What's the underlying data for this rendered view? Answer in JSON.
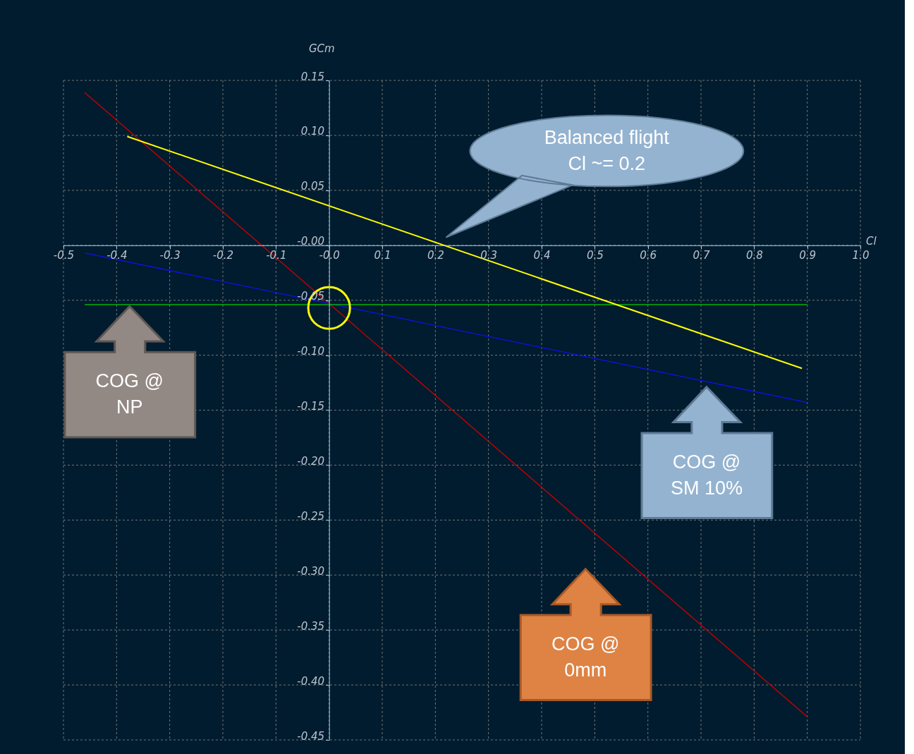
{
  "chart_data": {
    "type": "line",
    "xlabel": "Cl",
    "ylabel": "GCm",
    "xlim": [
      -0.5,
      1.0
    ],
    "ylim": [
      -0.45,
      0.15
    ],
    "xticks": [
      {
        "value": -0.5,
        "label": "-0.5"
      },
      {
        "value": -0.4,
        "label": "-0.4"
      },
      {
        "value": -0.3,
        "label": "-0.3"
      },
      {
        "value": -0.2,
        "label": "-0.2"
      },
      {
        "value": -0.1,
        "label": "-0.1"
      },
      {
        "value": 0,
        "label": "-0.0"
      },
      {
        "value": 0.1,
        "label": "0.1"
      },
      {
        "value": 0.2,
        "label": "0.2"
      },
      {
        "value": 0.3,
        "label": "0.3"
      },
      {
        "value": 0.4,
        "label": "0.4"
      },
      {
        "value": 0.5,
        "label": "0.5"
      },
      {
        "value": 0.6,
        "label": "0.6"
      },
      {
        "value": 0.7,
        "label": "0.7"
      },
      {
        "value": 0.8,
        "label": "0.8"
      },
      {
        "value": 0.9,
        "label": "0.9"
      },
      {
        "value": 1.0,
        "label": "1.0"
      }
    ],
    "yticks": [
      {
        "value": 0.15,
        "label": "0.15"
      },
      {
        "value": 0.1,
        "label": "0.10"
      },
      {
        "value": 0.05,
        "label": "0.05"
      },
      {
        "value": 0,
        "label": "-0.00"
      },
      {
        "value": -0.05,
        "label": "-0.05"
      },
      {
        "value": -0.1,
        "label": "-0.10"
      },
      {
        "value": -0.15,
        "label": "-0.15"
      },
      {
        "value": -0.2,
        "label": "-0.20"
      },
      {
        "value": -0.25,
        "label": "-0.25"
      },
      {
        "value": -0.3,
        "label": "-0.30"
      },
      {
        "value": -0.35,
        "label": "-0.35"
      },
      {
        "value": -0.4,
        "label": "-0.40"
      },
      {
        "value": -0.45,
        "label": "-0.45"
      }
    ],
    "grid": true,
    "marker": "none",
    "line_style": "solid",
    "series": [
      {
        "color": "#cc0000",
        "x": [
          -0.46,
          0.9
        ],
        "values": [
          0.139,
          -0.429
        ]
      },
      {
        "color": "#1010ee",
        "x": [
          -0.46,
          0.9
        ],
        "values": [
          -0.007,
          -0.143
        ]
      },
      {
        "color": "#00cc00",
        "x": [
          -0.46,
          0.9
        ],
        "values": [
          -0.054,
          -0.054
        ]
      },
      {
        "color": "#ffff00",
        "x": [
          -0.38,
          0.89
        ],
        "values": [
          0.099,
          -0.112
        ]
      },
      {
        "type": "scatter",
        "marker": "circle",
        "color": "#ffff00",
        "x": [
          0
        ],
        "values": [
          -0.057
        ]
      }
    ],
    "annotations": [
      "Balanced flight\nCl ~= 0.2",
      "COG @\nNP",
      "COG @\nSM 10%",
      "COG @\n0mm"
    ]
  }
}
